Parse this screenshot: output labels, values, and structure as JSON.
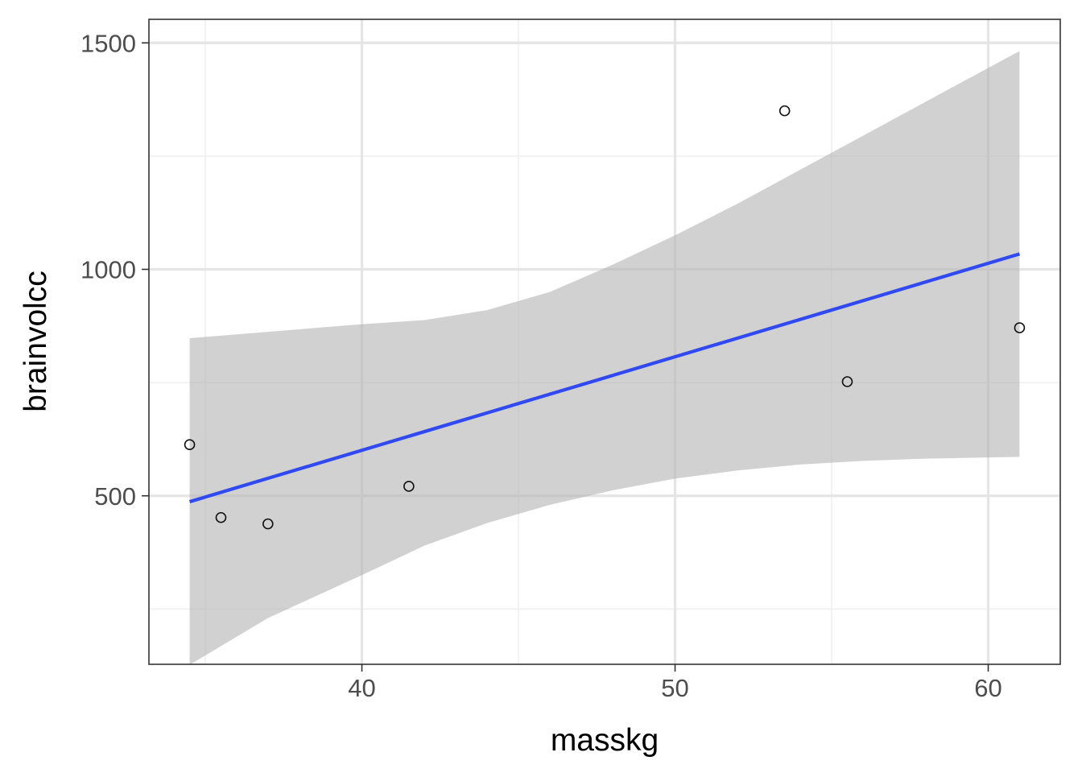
{
  "chart_data": {
    "type": "scatter",
    "xlabel": "masskg",
    "ylabel": "brainvolcc",
    "xlim": [
      33.2,
      62.3
    ],
    "ylim": [
      128,
      1552
    ],
    "x_ticks": [
      40,
      50,
      60
    ],
    "y_ticks": [
      500,
      1000,
      1500
    ],
    "x_minor_ticks": [
      35,
      45,
      55
    ],
    "y_minor_ticks": [
      250,
      750,
      1250
    ],
    "grid": true,
    "points": [
      {
        "x": 34.5,
        "y": 613
      },
      {
        "x": 35.5,
        "y": 452
      },
      {
        "x": 37.0,
        "y": 438
      },
      {
        "x": 41.5,
        "y": 521
      },
      {
        "x": 53.5,
        "y": 1350
      },
      {
        "x": 55.5,
        "y": 752
      },
      {
        "x": 61.0,
        "y": 871
      }
    ],
    "fit": {
      "method": "linear",
      "line": [
        {
          "x": 34.5,
          "y": 487
        },
        {
          "x": 61.0,
          "y": 1034
        }
      ],
      "ribbon": [
        {
          "x": 34.5,
          "lower": 127,
          "upper": 848
        },
        {
          "x": 37.0,
          "lower": 230,
          "upper": 862
        },
        {
          "x": 40.0,
          "lower": 325,
          "upper": 879
        },
        {
          "x": 42.0,
          "lower": 390,
          "upper": 888
        },
        {
          "x": 44.0,
          "lower": 440,
          "upper": 910
        },
        {
          "x": 46.0,
          "lower": 480,
          "upper": 950
        },
        {
          "x": 48.0,
          "lower": 512,
          "upper": 1010
        },
        {
          "x": 50.0,
          "lower": 538,
          "upper": 1075
        },
        {
          "x": 52.0,
          "lower": 556,
          "upper": 1145
        },
        {
          "x": 54.0,
          "lower": 569,
          "upper": 1220
        },
        {
          "x": 56.0,
          "lower": 577,
          "upper": 1295
        },
        {
          "x": 58.0,
          "lower": 582,
          "upper": 1370
        },
        {
          "x": 61.0,
          "lower": 586,
          "upper": 1482
        }
      ]
    },
    "colors": {
      "background": "#ffffff",
      "grid_major": "#e5e5e5",
      "grid_minor": "#efefef",
      "ribbon": "#b2b2b2",
      "line": "#3049f0",
      "point_stroke": "#111111",
      "border": "#333333",
      "tick_label": "#4d4d4d"
    }
  }
}
